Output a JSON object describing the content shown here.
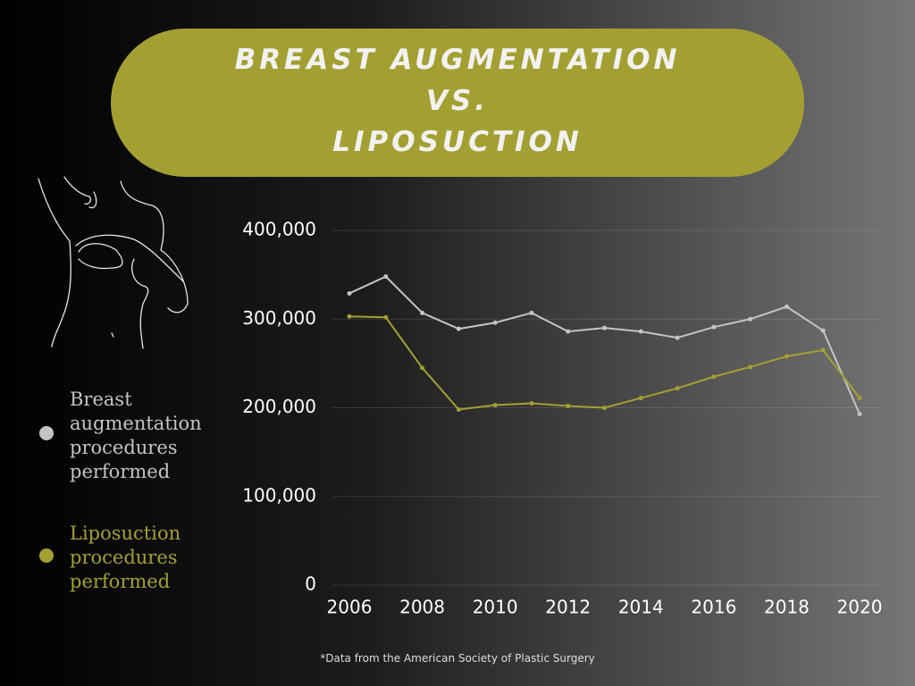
{
  "chart_data": {
    "type": "line",
    "title": "BREAST AUGMENTATION\nVS.\nLIPOSUCTION",
    "source": "*Data from the American Society of Plastic Surgery",
    "x": [
      2006,
      2007,
      2008,
      2009,
      2010,
      2011,
      2012,
      2013,
      2014,
      2015,
      2016,
      2017,
      2018,
      2019,
      2020
    ],
    "xlim": [
      2006,
      2020
    ],
    "xticks": [
      2006,
      2008,
      2010,
      2012,
      2014,
      2016,
      2018,
      2020
    ],
    "ylim": [
      0,
      400000
    ],
    "yticks": [
      0,
      {
        "value": 100000,
        "label": "100,000"
      },
      {
        "value": 200000,
        "label": "200,000"
      },
      {
        "value": 300000,
        "label": "300,000"
      },
      {
        "value": 400000,
        "label": "400,000"
      }
    ],
    "grid": true,
    "legend": "left",
    "series": [
      {
        "name": "Breast augmentation procedures performed",
        "color": "#c4c4c4",
        "values": [
          329000,
          348000,
          307000,
          289000,
          296000,
          307000,
          286000,
          290000,
          286000,
          279000,
          291000,
          300000,
          314000,
          287000,
          193000
        ]
      },
      {
        "name": "Liposuction procedures performed",
        "color": "#a3a033",
        "values": [
          303000,
          302000,
          245000,
          198000,
          203000,
          205000,
          202000,
          200000,
          211000,
          222000,
          235000,
          246000,
          258000,
          265000,
          211000
        ]
      }
    ]
  }
}
